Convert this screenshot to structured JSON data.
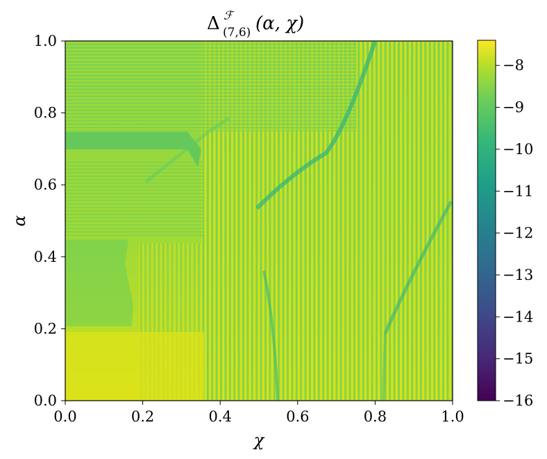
{
  "chart_data": {
    "type": "heatmap",
    "title": {
      "symbol": "Δ",
      "superscript": "ℱ",
      "subscript": "(7,6)",
      "args": "(α, χ)"
    },
    "xlabel": "χ",
    "ylabel": "α",
    "xlim": [
      0.0,
      1.0
    ],
    "ylim": [
      0.0,
      1.0
    ],
    "x_ticks": [
      "0.0",
      "0.2",
      "0.4",
      "0.6",
      "0.8",
      "1.0"
    ],
    "y_ticks": [
      "0.0",
      "0.2",
      "0.4",
      "0.6",
      "0.8",
      "1.0"
    ],
    "colormap": "viridis",
    "colorbar": {
      "vmin": -16,
      "vmax": -7.4,
      "ticks": [
        "−8",
        "−9",
        "−10",
        "−11",
        "−12",
        "−13",
        "−14",
        "−15",
        "−16"
      ]
    },
    "grid": false,
    "regions": [
      {
        "description": "bottom-left plateau",
        "chi": [
          0.0,
          0.2
        ],
        "alpha": [
          0.0,
          0.2
        ],
        "approx_value": -7.8
      },
      {
        "description": "left band",
        "chi": [
          0.0,
          0.18
        ],
        "alpha": [
          0.45,
          0.72
        ],
        "approx_value": -8.3
      },
      {
        "description": "upper-left band",
        "chi": [
          0.0,
          0.3
        ],
        "alpha": [
          0.75,
          1.0
        ],
        "approx_value": -8.5
      },
      {
        "description": "right stripes",
        "chi": [
          0.3,
          1.0
        ],
        "alpha": [
          0.0,
          1.0
        ],
        "approx_value": -8.5
      }
    ]
  }
}
